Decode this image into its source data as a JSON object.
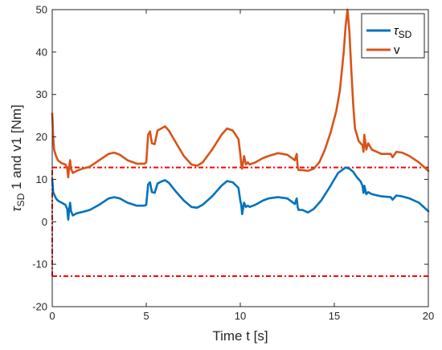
{
  "chart_data": {
    "type": "line",
    "title": "",
    "xlabel": "Time t [s]",
    "ylabel_parts": {
      "symbol": "τ",
      "sub": "SD",
      "rest": " 1 and v1 [Nm]"
    },
    "xlim": [
      0,
      20
    ],
    "ylim": [
      -20,
      50
    ],
    "x_ticks": [
      0,
      5,
      10,
      15,
      20
    ],
    "y_ticks": [
      -20,
      -10,
      0,
      10,
      20,
      30,
      40,
      50
    ],
    "grid": false,
    "legend_position": "top-right",
    "series": [
      {
        "name_parts": {
          "symbol": "τ",
          "sub": "SD"
        },
        "color": "#0072BD",
        "x": [
          0,
          0.05,
          0.1,
          0.2,
          0.3,
          0.5,
          0.7,
          0.8,
          0.85,
          0.9,
          0.95,
          1.0,
          1.1,
          1.3,
          1.6,
          2.0,
          2.5,
          3.0,
          3.3,
          3.6,
          4.0,
          4.5,
          4.9,
          5.0,
          5.1,
          5.2,
          5.3,
          5.45,
          5.6,
          5.8,
          6.0,
          6.2,
          6.6,
          7.0,
          7.4,
          7.7,
          8.0,
          8.5,
          9.0,
          9.3,
          9.6,
          9.9,
          10.0,
          10.05,
          10.1,
          10.2,
          10.3,
          10.4,
          10.5,
          10.8,
          11.2,
          11.5,
          12.0,
          12.5,
          12.9,
          13.0,
          13.05,
          13.1,
          13.3,
          13.6,
          13.9,
          14.3,
          14.8,
          15.2,
          15.6,
          15.8,
          16.0,
          16.2,
          16.4,
          16.5,
          16.55,
          16.6,
          16.7,
          16.8,
          17.0,
          17.5,
          18.0,
          18.1,
          18.3,
          18.6,
          19.0,
          19.5,
          20.0
        ],
        "values": [
          10,
          7,
          6.5,
          5.5,
          5,
          4.5,
          4,
          3,
          0.5,
          3,
          4.5,
          2.5,
          1.5,
          2,
          2.3,
          2.8,
          4,
          5.5,
          5.8,
          5.5,
          4.5,
          3.8,
          3.8,
          4,
          8.8,
          9.3,
          7,
          6.8,
          9,
          9.5,
          9.8,
          9.2,
          7,
          5,
          3.5,
          3.3,
          4,
          6,
          8.5,
          9.6,
          9.3,
          8,
          5,
          4,
          1.8,
          4.5,
          3.5,
          3.8,
          3.5,
          4,
          5,
          5.5,
          5.8,
          5.5,
          4.2,
          5.5,
          3.5,
          2.8,
          2.8,
          2.2,
          3,
          5,
          8.5,
          11.5,
          12.8,
          12.5,
          11.8,
          10.5,
          9.5,
          8.5,
          6.8,
          8.5,
          6.5,
          7,
          6.5,
          6,
          5.8,
          5.2,
          6.2,
          6,
          5.5,
          4.5,
          2.5
        ]
      },
      {
        "name": "v",
        "color": "#D95319",
        "x": [
          0,
          0.05,
          0.1,
          0.2,
          0.3,
          0.5,
          0.7,
          0.8,
          0.85,
          0.9,
          0.95,
          1.0,
          1.1,
          1.3,
          1.6,
          2.0,
          2.5,
          3.0,
          3.3,
          3.6,
          4.0,
          4.5,
          4.9,
          5.0,
          5.1,
          5.2,
          5.3,
          5.45,
          5.6,
          5.8,
          6.0,
          6.2,
          6.6,
          7.0,
          7.4,
          7.7,
          8.0,
          8.5,
          9.0,
          9.3,
          9.6,
          9.9,
          10.0,
          10.05,
          10.1,
          10.2,
          10.3,
          10.4,
          10.5,
          10.8,
          11.2,
          11.5,
          12.0,
          12.5,
          12.9,
          13.0,
          13.05,
          13.1,
          13.3,
          13.6,
          13.9,
          14.2,
          14.5,
          14.8,
          15.1,
          15.3,
          15.5,
          15.6,
          15.7,
          15.8,
          15.9,
          16.0,
          16.1,
          16.2,
          16.3,
          16.5,
          16.55,
          16.6,
          16.7,
          16.8,
          17.0,
          17.5,
          18.0,
          18.1,
          18.3,
          18.6,
          19.0,
          19.5,
          20.0
        ],
        "values": [
          25.5,
          20,
          17,
          15.5,
          14.5,
          13.8,
          13.5,
          12.5,
          10.5,
          13,
          14.5,
          12.5,
          11.5,
          12,
          12.5,
          13,
          14.5,
          16,
          16.3,
          15.8,
          14.5,
          13.7,
          13.7,
          14,
          20.5,
          21.3,
          18.5,
          18.3,
          21.5,
          22,
          22.5,
          21.5,
          18.5,
          15.5,
          13.5,
          13.2,
          14,
          17,
          20.5,
          22,
          21.5,
          19.5,
          16,
          13.5,
          12.5,
          15.5,
          13.5,
          14,
          13.5,
          14,
          15,
          15.5,
          16.2,
          15.8,
          14.5,
          16,
          13,
          12.2,
          12.2,
          12,
          12.5,
          14,
          17,
          21,
          26,
          31,
          40,
          46,
          50,
          45,
          36,
          28,
          22,
          20.5,
          19,
          18,
          16.5,
          20.5,
          17,
          18.5,
          17,
          16,
          16,
          15.2,
          16.5,
          16.3,
          15.5,
          14,
          12
        ]
      }
    ],
    "reference_lines": [
      {
        "kind": "horizontal",
        "y": 12.8,
        "color": "#FF0000",
        "style": "dash-dot"
      },
      {
        "kind": "horizontal",
        "y": -12.8,
        "color": "#FF0000",
        "style": "dash-dot"
      },
      {
        "kind": "vertical",
        "x": 0,
        "y_range": [
          -12.8,
          12.8
        ],
        "color": "#FF0000",
        "style": "dash-dot"
      }
    ]
  }
}
